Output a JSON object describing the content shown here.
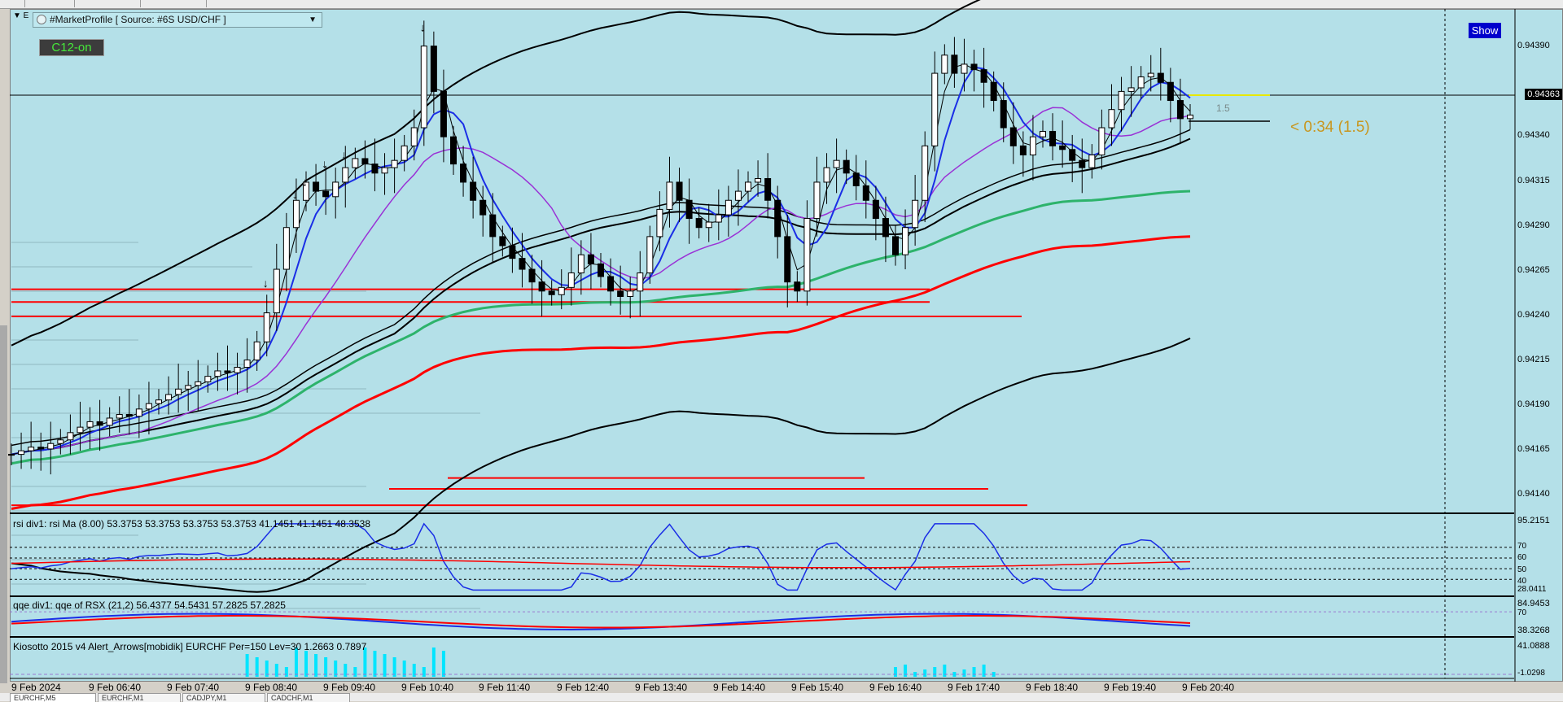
{
  "window": {
    "collapse_glyph": "▼ E"
  },
  "indicator_select": {
    "value": "#MarketProfile [ Source: #6S USD/CHF ]"
  },
  "buttons": {
    "c12": "C12-on",
    "show": "Show"
  },
  "countdown": "< 0:34 (1.5)",
  "label_15": "1.5",
  "current_price": "0.94363",
  "price_ticks": [
    "0.94390",
    "0.94340",
    "0.94315",
    "0.94290",
    "0.94265",
    "0.94240",
    "0.94215",
    "0.94190",
    "0.94165",
    "0.94140"
  ],
  "rsi_panel": {
    "label": "rsi div1: rsi Ma (8.00) 53.3753 53.3753 53.3753 53.3753 41.1451 41.1451 48.3538",
    "scale": [
      "95.2151",
      "70",
      "60",
      "50",
      "40",
      "28.0411"
    ]
  },
  "qqe_panel": {
    "label": "qqe div1: qqe of RSX (21,2) 56.4377 54.5431 57.2825 57.2825",
    "scale": [
      "84.9453",
      "70",
      "38.3268"
    ]
  },
  "kiosotto_panel": {
    "label": "Kiosotto 2015 v4 Alert_Arrows[mobidik] EURCHF Per=150 Lev=30 1.2663 0.7897",
    "scale": [
      "41.0888",
      "-1.0298"
    ]
  },
  "time_axis": [
    "9 Feb 2024",
    "9 Feb 06:40",
    "9 Feb 07:40",
    "9 Feb 08:40",
    "9 Feb 09:40",
    "9 Feb 10:40",
    "9 Feb 11:40",
    "9 Feb 12:40",
    "9 Feb 13:40",
    "9 Feb 14:40",
    "9 Feb 15:40",
    "9 Feb 16:40",
    "9 Feb 17:40",
    "9 Feb 18:40",
    "9 Feb 19:40",
    "9 Feb 20:40"
  ],
  "tabs": [
    "EURCHF,M5",
    "EURCHF,M1",
    "CADJPY,M1",
    "CADCHF,M1"
  ],
  "colors": {
    "background": "#b4e0e8",
    "bull": "#ffffff",
    "bear": "#000000",
    "red_line": "#ff0000",
    "green_ma": "#2db36b",
    "blue_ma": "#1a2ee6",
    "purple_ma": "#9a32d6"
  },
  "chart_data": {
    "type": "candlestick",
    "timeframe": "M5",
    "ylim": [
      0.94128,
      0.94405
    ],
    "x_ticks": [
      "9 Feb 2024",
      "9 Feb 06:40",
      "9 Feb 07:40",
      "9 Feb 08:40",
      "9 Feb 09:40",
      "9 Feb 10:40",
      "9 Feb 11:40",
      "9 Feb 12:40",
      "9 Feb 13:40",
      "9 Feb 14:40",
      "9 Feb 15:40",
      "9 Feb 16:40",
      "9 Feb 17:40",
      "9 Feb 18:40",
      "9 Feb 19:40",
      "9 Feb 20:40"
    ],
    "close_path": [
      0.9416,
      0.94162,
      0.94164,
      0.94163,
      0.94166,
      0.94168,
      0.94172,
      0.94175,
      0.94178,
      0.94176,
      0.9418,
      0.94182,
      0.94181,
      0.94185,
      0.94188,
      0.9419,
      0.94193,
      0.94196,
      0.94198,
      0.942,
      0.94203,
      0.94206,
      0.94205,
      0.94208,
      0.94212,
      0.94222,
      0.94238,
      0.94262,
      0.94285,
      0.943,
      0.9431,
      0.94305,
      0.94302,
      0.9431,
      0.94318,
      0.94323,
      0.9432,
      0.94315,
      0.94318,
      0.94322,
      0.9433,
      0.9434,
      0.94385,
      0.9436,
      0.94335,
      0.9432,
      0.9431,
      0.943,
      0.94292,
      0.9428,
      0.94275,
      0.94268,
      0.94262,
      0.94255,
      0.9425,
      0.94248,
      0.94252,
      0.9426,
      0.9427,
      0.94265,
      0.94258,
      0.9425,
      0.94247,
      0.9425,
      0.9426,
      0.9428,
      0.94295,
      0.9431,
      0.943,
      0.9429,
      0.94285,
      0.94288,
      0.94292,
      0.943,
      0.94305,
      0.9431,
      0.94312,
      0.943,
      0.9428,
      0.94255,
      0.9425,
      0.9429,
      0.9431,
      0.94318,
      0.94322,
      0.94315,
      0.94308,
      0.943,
      0.9429,
      0.9428,
      0.9427,
      0.94285,
      0.943,
      0.9433,
      0.9437,
      0.9438,
      0.9437,
      0.94375,
      0.94372,
      0.94365,
      0.94355,
      0.9434,
      0.9433,
      0.94325,
      0.94335,
      0.94338,
      0.9433,
      0.94328,
      0.94322,
      0.94318,
      0.94325,
      0.9434,
      0.9435,
      0.9436,
      0.94362,
      0.94368,
      0.9437,
      0.94365,
      0.94355,
      0.94345,
      0.94347
    ],
    "horizontal_levels": [
      0.94251,
      0.94244,
      0.94236,
      0.94147,
      0.94141,
      0.94132
    ],
    "arrows_at_price": [
      0.94385,
      0.94315,
      0.9431,
      0.943,
      0.94293,
      0.94244
    ]
  }
}
